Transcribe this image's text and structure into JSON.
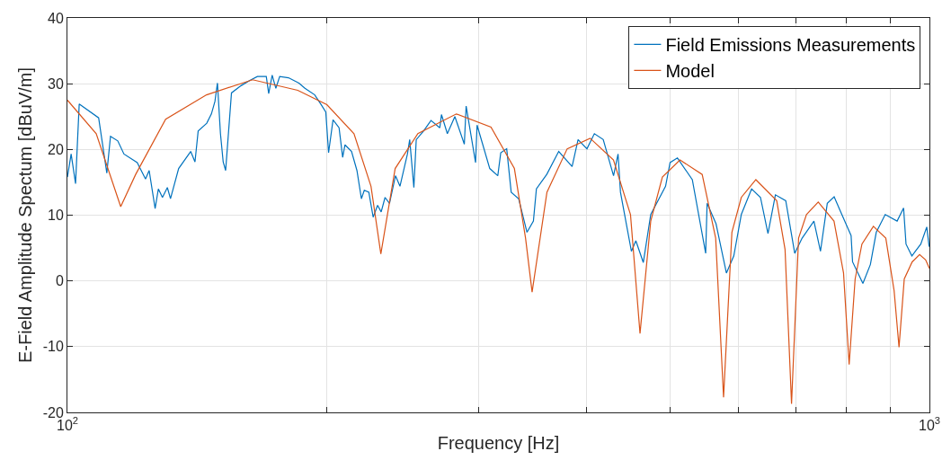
{
  "chart_data": {
    "type": "line",
    "xlabel": "Frequency [Hz]",
    "ylabel": "E-Field Amplitude Spectum [dBuV/m]",
    "log": "x",
    "grid": true,
    "legend": "top right",
    "line_style": "solid",
    "marker": "none",
    "xlim": [
      100,
      1000
    ],
    "xticks": [
      {
        "value": 100,
        "label": "10$^{2}$"
      },
      {
        "value": 200,
        "label": null
      },
      {
        "value": 300,
        "label": null
      },
      {
        "value": 400,
        "label": null
      },
      {
        "value": 500,
        "label": null
      },
      {
        "value": 600,
        "label": null
      },
      {
        "value": 700,
        "label": null
      },
      {
        "value": 800,
        "label": null
      },
      {
        "value": 900,
        "label": null
      },
      {
        "value": 1000,
        "label": "10$^{3}$"
      }
    ],
    "ylim": [
      -20,
      40
    ],
    "yticks": [
      -20,
      -10,
      0,
      10,
      20,
      30,
      40
    ],
    "series": [
      {
        "name": "Field Emissions Measurements",
        "color": "#0072bd",
        "x": [
          100,
          101,
          102.2,
          103.2,
          108.7,
          111.1,
          112.2,
          114.4,
          116.3,
          120.5,
          123.2,
          124.4,
          126.4,
          127.5,
          128.9,
          130.6,
          131.7,
          134.6,
          139,
          140.6,
          141.8,
          145.1,
          146.9,
          148.3,
          149.3,
          150.5,
          151.6,
          152.6,
          155.0,
          159.0,
          162.8,
          166.1,
          170.1,
          171.2,
          172.8,
          174.5,
          176.3,
          180.5,
          185.6,
          188.6,
          193.6,
          197.0,
          199.4,
          200.9,
          203.3,
          206.6,
          208.6,
          209.9,
          213.6,
          216.7,
          219.3,
          221.0,
          223.7,
          226.3,
          229.0,
          231.2,
          233.6,
          236.4,
          240.2,
          243.1,
          248.0,
          249.5,
          252.3,
          253.9,
          258.9,
          264.1,
          270.4,
          271.6,
          275.9,
          281.5,
          288.7,
          290.1,
          297.5,
          298.7,
          309.0,
          315.7,
          318.2,
          323.3,
          327.2,
          333.8,
          341.3,
          347.2,
          350.0,
          359.8,
          371.5,
          385.0,
          391.2,
          400.6,
          408.6,
          418.4,
          430.1,
          435.3,
          438.1,
          451.1,
          456.5,
          465.7,
          475.0,
          494.2,
          500.2,
          510.1,
          530.8,
          550.1,
          552.2,
          565.5,
          581.4,
          593.0,
          605.0,
          621.9,
          636.8,
          649.7,
          662.7,
          681.3,
          697.8,
          711.7,
          734.5,
          747.5,
          761.2,
          775.3,
          788.9,
          811.2,
          814.4,
          837.2,
          854.1,
          867.6,
          888.6,
          917.3,
          933.3,
          939.4,
          954.2,
          977.2,
          992.9,
          999.3
        ],
        "values": [
          15.8,
          19.3,
          14.8,
          26.9,
          24.8,
          16.4,
          22.0,
          21.3,
          19.3,
          18.0,
          15.5,
          16.8,
          11.0,
          14.0,
          12.7,
          14.2,
          12.5,
          17.1,
          19.7,
          18.1,
          22.8,
          24.0,
          25.4,
          27.3,
          30.1,
          22.4,
          18.1,
          16.8,
          28.6,
          29.7,
          30.5,
          31.1,
          31.1,
          28.5,
          31.3,
          29.3,
          31.1,
          30.9,
          30.1,
          29.3,
          28.3,
          26.8,
          25.7,
          19.5,
          24.5,
          23.3,
          18.8,
          20.7,
          19.7,
          16.8,
          12.5,
          13.8,
          13.5,
          9.7,
          11.5,
          10.5,
          12.7,
          11.8,
          16.0,
          14.4,
          19.3,
          21.5,
          14.2,
          21.5,
          22.8,
          24.4,
          23.3,
          25.3,
          22.4,
          25.0,
          20.8,
          26.6,
          18.0,
          23.7,
          17.1,
          16.0,
          19.5,
          20.1,
          13.5,
          12.5,
          7.4,
          9.1,
          14.0,
          16.2,
          19.7,
          17.4,
          21.5,
          20.1,
          22.4,
          21.5,
          16.0,
          19.3,
          13.5,
          4.5,
          6.1,
          2.8,
          10.1,
          14.4,
          18.0,
          18.7,
          15.4,
          4.2,
          11.8,
          8.7,
          1.2,
          3.8,
          10.1,
          14.0,
          12.7,
          7.2,
          13.1,
          12.2,
          4.2,
          6.5,
          9.1,
          4.5,
          11.8,
          12.8,
          10.5,
          6.9,
          2.9,
          -0.4,
          2.5,
          7.4,
          10.1,
          9.1,
          11.1,
          5.6,
          3.8,
          5.6,
          8.2,
          5.2
        ]
      },
      {
        "name": "Model",
        "color": "#d95319",
        "x": [
          100,
          108,
          115.3,
          120,
          130,
          145,
          164,
          185,
          200,
          215,
          225,
          231,
          240,
          255,
          282.6,
          310,
          330,
          340,
          346,
          360,
          380,
          404,
          430,
          450,
          461.6,
          475,
          490,
          513.6,
          545,
          565,
          577,
          590,
          605,
          629,
          665,
          680,
          691.9,
          705,
          720,
          743,
          775,
          795,
          807,
          820,
          835,
          861,
          890,
          910,
          922,
          935,
          955,
          974,
          990,
          1000
        ],
        "values": [
          27.5,
          22.4,
          11.3,
          16.2,
          24.6,
          28.3,
          30.6,
          29.0,
          26.8,
          22.4,
          14.4,
          4.1,
          17.1,
          22.4,
          25.4,
          23.4,
          17.1,
          6.5,
          -1.7,
          13.5,
          20.1,
          21.7,
          18.4,
          10.1,
          -8.0,
          9.1,
          15.8,
          18.4,
          16.2,
          6.5,
          -17.7,
          7.4,
          12.7,
          15.4,
          12.2,
          4.8,
          -18.7,
          6.5,
          10.1,
          12.0,
          9.1,
          1.2,
          -12.7,
          0.3,
          5.6,
          8.3,
          6.5,
          -1.5,
          -10.1,
          0.3,
          2.9,
          4.0,
          3.2,
          1.9
        ]
      }
    ]
  }
}
